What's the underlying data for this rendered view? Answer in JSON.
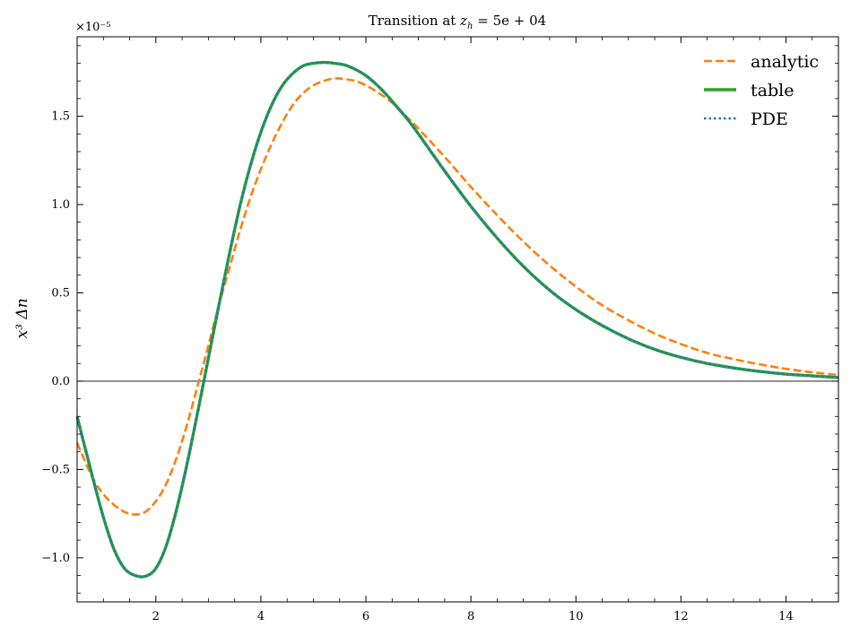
{
  "chart_data": {
    "type": "line",
    "title": "Transition at z_h = 5e+04",
    "title_parts": {
      "prefix": "Transition at ",
      "var": "z",
      "sub": "h",
      "suffix": " = 5e + 04"
    },
    "xlabel": "",
    "ylabel": "x³ Δn",
    "y_offset_label": "×10⁻⁵",
    "xlim": [
      0.5,
      15
    ],
    "ylim": [
      -1.25,
      1.95
    ],
    "x_ticks": [
      2,
      4,
      6,
      8,
      10,
      12,
      14
    ],
    "x_tick_labels": [
      "2",
      "4",
      "6",
      "8",
      "10",
      "12",
      "14"
    ],
    "y_ticks": [
      -1.0,
      -0.5,
      0.0,
      0.5,
      1.0,
      1.5
    ],
    "y_tick_labels": [
      "−1.0",
      "−0.5",
      "0.0",
      "0.5",
      "1.0",
      "1.5"
    ],
    "zero_line": true,
    "grid": false,
    "legend_position": "top-right",
    "series": [
      {
        "name": "analytic",
        "color": "#ff7f0e",
        "style": "dashed",
        "x": [
          0.5,
          0.8,
          1.0,
          1.2,
          1.4,
          1.6,
          1.8,
          2.0,
          2.2,
          2.4,
          2.6,
          2.8,
          3.0,
          3.2,
          3.4,
          3.6,
          3.8,
          4.0,
          4.2,
          4.4,
          4.6,
          4.8,
          5.0,
          5.2,
          5.4,
          5.6,
          5.8,
          6.0,
          6.2,
          6.4,
          6.6,
          6.8,
          7.0,
          7.5,
          8.0,
          8.5,
          9.0,
          9.5,
          10.0,
          10.5,
          11.0,
          11.5,
          12.0,
          12.5,
          13.0,
          13.5,
          14.0,
          14.5,
          15.0
        ],
        "y": [
          -0.35,
          -0.55,
          -0.64,
          -0.7,
          -0.74,
          -0.755,
          -0.74,
          -0.68,
          -0.58,
          -0.43,
          -0.24,
          -0.02,
          0.2,
          0.43,
          0.64,
          0.85,
          1.04,
          1.2,
          1.34,
          1.46,
          1.56,
          1.63,
          1.675,
          1.7,
          1.715,
          1.71,
          1.7,
          1.675,
          1.64,
          1.6,
          1.55,
          1.49,
          1.43,
          1.27,
          1.1,
          0.94,
          0.79,
          0.655,
          0.535,
          0.43,
          0.345,
          0.27,
          0.21,
          0.16,
          0.125,
          0.095,
          0.07,
          0.05,
          0.035
        ]
      },
      {
        "name": "table",
        "color": "#2ca02c",
        "style": "solid",
        "x": [
          0.5,
          0.8,
          1.0,
          1.2,
          1.4,
          1.6,
          1.8,
          2.0,
          2.2,
          2.4,
          2.6,
          2.8,
          3.0,
          3.2,
          3.4,
          3.6,
          3.8,
          4.0,
          4.2,
          4.4,
          4.6,
          4.8,
          5.0,
          5.2,
          5.4,
          5.6,
          5.8,
          6.0,
          6.2,
          6.4,
          6.6,
          6.8,
          7.0,
          7.5,
          8.0,
          8.5,
          9.0,
          9.5,
          10.0,
          10.5,
          11.0,
          11.5,
          12.0,
          12.5,
          13.0,
          13.5,
          14.0,
          14.5,
          15.0
        ],
        "y": [
          -0.2,
          -0.55,
          -0.77,
          -0.95,
          -1.06,
          -1.1,
          -1.105,
          -1.06,
          -0.93,
          -0.72,
          -0.46,
          -0.17,
          0.13,
          0.43,
          0.72,
          0.99,
          1.22,
          1.41,
          1.56,
          1.67,
          1.74,
          1.785,
          1.8,
          1.805,
          1.8,
          1.79,
          1.765,
          1.73,
          1.68,
          1.62,
          1.55,
          1.48,
          1.4,
          1.19,
          0.99,
          0.81,
          0.65,
          0.515,
          0.405,
          0.315,
          0.24,
          0.18,
          0.135,
          0.1,
          0.075,
          0.055,
          0.04,
          0.03,
          0.02
        ]
      },
      {
        "name": "PDE",
        "color": "#1f77b4",
        "style": "dotted",
        "x": [
          0.5,
          0.8,
          1.0,
          1.2,
          1.4,
          1.6,
          1.8,
          2.0,
          2.2,
          2.4,
          2.6,
          2.8,
          3.0,
          3.2,
          3.4,
          3.6,
          3.8,
          4.0,
          4.2,
          4.4,
          4.6,
          4.8,
          5.0,
          5.2,
          5.4,
          5.6,
          5.8,
          6.0,
          6.2,
          6.4,
          6.6,
          6.8,
          7.0,
          7.5,
          8.0,
          8.5,
          9.0,
          9.5,
          10.0,
          10.5,
          11.0,
          11.5,
          12.0,
          12.5,
          13.0,
          13.5,
          14.0,
          14.5,
          15.0
        ],
        "y": [
          -0.2,
          -0.55,
          -0.77,
          -0.95,
          -1.06,
          -1.1,
          -1.105,
          -1.06,
          -0.93,
          -0.72,
          -0.46,
          -0.17,
          0.13,
          0.43,
          0.72,
          0.99,
          1.22,
          1.41,
          1.56,
          1.67,
          1.74,
          1.785,
          1.8,
          1.805,
          1.8,
          1.79,
          1.765,
          1.73,
          1.68,
          1.62,
          1.55,
          1.48,
          1.4,
          1.19,
          0.99,
          0.81,
          0.65,
          0.515,
          0.405,
          0.315,
          0.24,
          0.18,
          0.135,
          0.1,
          0.075,
          0.055,
          0.04,
          0.03,
          0.02
        ]
      }
    ]
  }
}
